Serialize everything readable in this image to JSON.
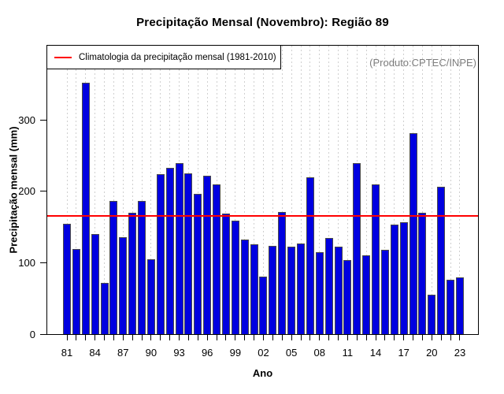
{
  "title": "Precipitação Mensal (Novembro): Região 89",
  "legend": {
    "label": "Climatologia da precipitação mensal (1981-2010)"
  },
  "annotation": "(Produto:CPTEC/INPE)",
  "axes": {
    "x_label": "Ano",
    "y_label": "Precipitação mensal (mm)"
  },
  "colors": {
    "bar_fill": "#0000E0",
    "bar_border": "#4a4a4a",
    "reference_line": "#FF0000",
    "annotation_gray": "#7d7d7d",
    "gridline": "#cfcfcf"
  },
  "chart_data": {
    "type": "bar",
    "title": "Precipitação Mensal (Novembro): Região 89",
    "xlabel": "Ano",
    "ylabel": "Precipitação mensal (mm)",
    "x": [
      1981,
      1982,
      1983,
      1984,
      1985,
      1986,
      1987,
      1988,
      1989,
      1990,
      1991,
      1992,
      1993,
      1994,
      1995,
      1996,
      1997,
      1998,
      1999,
      2000,
      2001,
      2002,
      2003,
      2004,
      2005,
      2006,
      2007,
      2008,
      2009,
      2010,
      2011,
      2012,
      2013,
      2014,
      2015,
      2016,
      2017,
      2018,
      2019,
      2020,
      2021,
      2022,
      2023
    ],
    "values": [
      155,
      119,
      352,
      140,
      72,
      187,
      136,
      170,
      187,
      105,
      224,
      233,
      240,
      225,
      197,
      222,
      210,
      169,
      159,
      133,
      126,
      81,
      124,
      171,
      123,
      127,
      220,
      115,
      135,
      122,
      104,
      239,
      110,
      210,
      118,
      153,
      157,
      282,
      170,
      55,
      206,
      76,
      79
    ],
    "ylim": [
      0,
      404
    ],
    "yticks": [
      0,
      100,
      200,
      300
    ],
    "x_tick_labels": [
      "81",
      "84",
      "87",
      "90",
      "93",
      "96",
      "99",
      "02",
      "05",
      "08",
      "11",
      "14",
      "17",
      "20",
      "23"
    ],
    "x_tick_label_step": 3,
    "grid": "vertical-dotted",
    "legend_position": "topleft",
    "legend_entries": [
      "Climatologia da precipitação mensal (1981-2010)"
    ],
    "reference_line": {
      "value": 166,
      "period": "1981-2010"
    },
    "annotation": "(Produto:CPTEC/INPE)"
  }
}
